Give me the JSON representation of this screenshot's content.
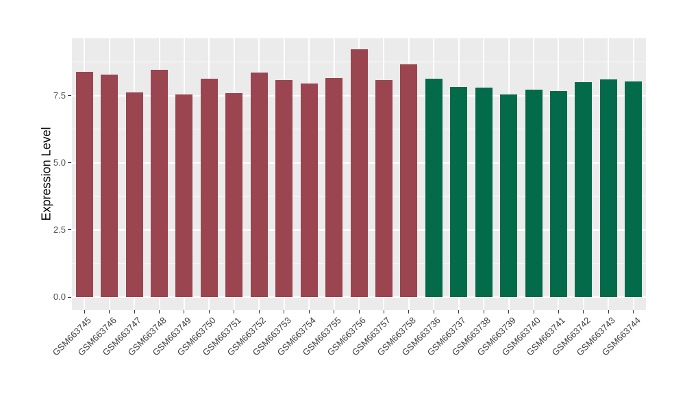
{
  "chart_data": {
    "type": "bar",
    "title": "",
    "xlabel": "",
    "ylabel": "Expression Level",
    "legend_position": "none",
    "grid": true,
    "panel_background": "#EBEBEB",
    "grid_color": "#FFFFFF",
    "axis_text_color": "#4D4D4D",
    "x_label_color": "#3c3c3c",
    "tick_mark_color": "#333333",
    "ylim": [
      -0.48,
      9.63
    ],
    "y_ticks": [
      {
        "label": "0.0",
        "value": 0
      },
      {
        "label": "2.5",
        "value": 2.5
      },
      {
        "label": "5.0",
        "value": 5
      },
      {
        "label": "7.5",
        "value": 7.5
      }
    ],
    "y_minor_ticks": [
      1.25,
      3.75,
      6.25,
      8.75
    ],
    "group_colors": {
      "group_1": "#9A4550",
      "group_2": "#046B4A"
    },
    "bars": [
      {
        "label": "GSM663745",
        "value": 8.37,
        "group": "group_1",
        "color": "#9A4550"
      },
      {
        "label": "GSM663746",
        "value": 8.27,
        "group": "group_1",
        "color": "#9A4550"
      },
      {
        "label": "GSM663747",
        "value": 7.63,
        "group": "group_1",
        "color": "#9A4550"
      },
      {
        "label": "GSM663748",
        "value": 8.47,
        "group": "group_1",
        "color": "#9A4550"
      },
      {
        "label": "GSM663749",
        "value": 7.55,
        "group": "group_1",
        "color": "#9A4550"
      },
      {
        "label": "GSM663750",
        "value": 8.14,
        "group": "group_1",
        "color": "#9A4550"
      },
      {
        "label": "GSM663751",
        "value": 7.58,
        "group": "group_1",
        "color": "#9A4550"
      },
      {
        "label": "GSM663752",
        "value": 8.36,
        "group": "group_1",
        "color": "#9A4550"
      },
      {
        "label": "GSM663753",
        "value": 8.07,
        "group": "group_1",
        "color": "#9A4550"
      },
      {
        "label": "GSM663754",
        "value": 7.94,
        "group": "group_1",
        "color": "#9A4550"
      },
      {
        "label": "GSM663755",
        "value": 8.16,
        "group": "group_1",
        "color": "#9A4550"
      },
      {
        "label": "GSM663756",
        "value": 9.21,
        "group": "group_1",
        "color": "#9A4550"
      },
      {
        "label": "GSM663757",
        "value": 8.08,
        "group": "group_1",
        "color": "#9A4550"
      },
      {
        "label": "GSM663758",
        "value": 8.66,
        "group": "group_1",
        "color": "#9A4550"
      },
      {
        "label": "GSM663736",
        "value": 8.14,
        "group": "group_2",
        "color": "#046B4A"
      },
      {
        "label": "GSM663737",
        "value": 7.83,
        "group": "group_2",
        "color": "#046B4A"
      },
      {
        "label": "GSM663738",
        "value": 7.79,
        "group": "group_2",
        "color": "#046B4A"
      },
      {
        "label": "GSM663739",
        "value": 7.53,
        "group": "group_2",
        "color": "#046B4A"
      },
      {
        "label": "GSM663740",
        "value": 7.71,
        "group": "group_2",
        "color": "#046B4A"
      },
      {
        "label": "GSM663741",
        "value": 7.67,
        "group": "group_2",
        "color": "#046B4A"
      },
      {
        "label": "GSM663742",
        "value": 7.99,
        "group": "group_2",
        "color": "#046B4A"
      },
      {
        "label": "GSM663743",
        "value": 8.09,
        "group": "group_2",
        "color": "#046B4A"
      },
      {
        "label": "GSM663744",
        "value": 8.02,
        "group": "group_2",
        "color": "#046B4A"
      }
    ]
  }
}
